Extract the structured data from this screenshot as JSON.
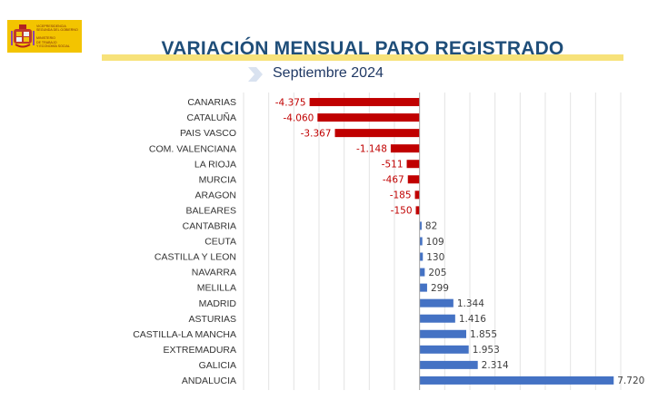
{
  "header": {
    "logo": {
      "lines": [
        "VICEPRESIDENCIA",
        "SEGUNDA DEL GOBIERNO",
        "",
        "MINISTERIO",
        "DE TRABAJO",
        "Y ECONOMÍA SOCIAL"
      ]
    },
    "title": "VARIACIÓN MENSUAL PARO REGISTRADO",
    "subtitle": "Septiembre 2024"
  },
  "colors": {
    "negative": "#c00000",
    "positive": "#4472c4",
    "title": "#1f4e79",
    "title_bar": "#f7e27a",
    "logo_bg": "#f3c400"
  },
  "chart_data": {
    "type": "bar",
    "orientation": "horizontal",
    "title": "",
    "xlabel": "",
    "ylabel": "",
    "xlim": [
      -7000,
      8000
    ],
    "grid": true,
    "categories": [
      "CANARIAS",
      "CATALUÑA",
      "PAIS VASCO",
      "COM. VALENCIANA",
      "LA RIOJA",
      "MURCIA",
      "ARAGON",
      "BALEARES",
      "CANTABRIA",
      "CEUTA",
      "CASTILLA Y LEON",
      "NAVARRA",
      "MELILLA",
      "MADRID",
      "ASTURIAS",
      "CASTILLA-LA MANCHA",
      "EXTREMADURA",
      "GALICIA",
      "ANDALUCIA"
    ],
    "values": [
      -4375,
      -4060,
      -3367,
      -1148,
      -511,
      -467,
      -185,
      -150,
      82,
      109,
      130,
      205,
      299,
      1344,
      1416,
      1855,
      1953,
      2314,
      7720
    ],
    "value_labels": [
      "-4.375",
      "-4.060",
      "-3.367",
      "-1.148",
      "-511",
      "-467",
      "-185",
      "-150",
      "82",
      "109",
      "130",
      "205",
      "299",
      "1.344",
      "1.416",
      "1.855",
      "1.953",
      "2.314",
      "7.720"
    ]
  }
}
